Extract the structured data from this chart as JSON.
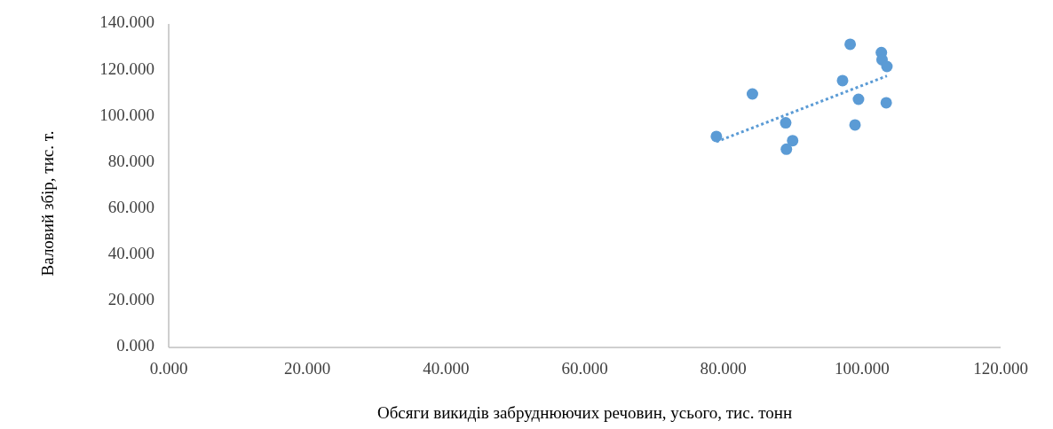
{
  "chart_data": {
    "type": "scatter",
    "xlabel": "Обсяги викидів забруднюючих речовин, усього, тис. тонн",
    "ylabel": "Валовий збір, тис. т.",
    "xlim": [
      0,
      120
    ],
    "xticks": [
      {
        "value": 0,
        "label": "0.000"
      },
      {
        "value": 20,
        "label": "20.000"
      },
      {
        "value": 40,
        "label": "40.000"
      },
      {
        "value": 60,
        "label": "60.000"
      },
      {
        "value": 80,
        "label": "80.000"
      },
      {
        "value": 100,
        "label": "100.000"
      },
      {
        "value": 120,
        "label": "120.000"
      }
    ],
    "ylim": [
      0,
      140
    ],
    "yticks": [
      {
        "value": 0,
        "label": "0.000"
      },
      {
        "value": 20,
        "label": "20.000"
      },
      {
        "value": 40,
        "label": "40.000"
      },
      {
        "value": 60,
        "label": "60.000"
      },
      {
        "value": 80,
        "label": "80.000"
      },
      {
        "value": 100,
        "label": "100.000"
      },
      {
        "value": 120,
        "label": "120.000"
      },
      {
        "value": 140,
        "label": "140.000"
      }
    ],
    "grid": false,
    "series": [
      {
        "color": "#5b9bd5",
        "marker": "circle",
        "x": [
          79.0,
          84.2,
          89.0,
          90.0,
          89.1,
          98.3,
          97.2,
          99.5,
          99.0,
          102.8,
          102.9,
          103.6,
          103.5
        ],
        "values": [
          91.3,
          109.7,
          97.2,
          89.5,
          85.8,
          131.2,
          115.5,
          107.4,
          96.3,
          127.6,
          124.5,
          121.6,
          105.9
        ]
      },
      {
        "type": "line",
        "color": "#5b9bd5",
        "line_style": "dotted",
        "marker": "none",
        "x": [
          79.0,
          103.6
        ],
        "values": [
          89,
          117.5
        ]
      }
    ]
  }
}
